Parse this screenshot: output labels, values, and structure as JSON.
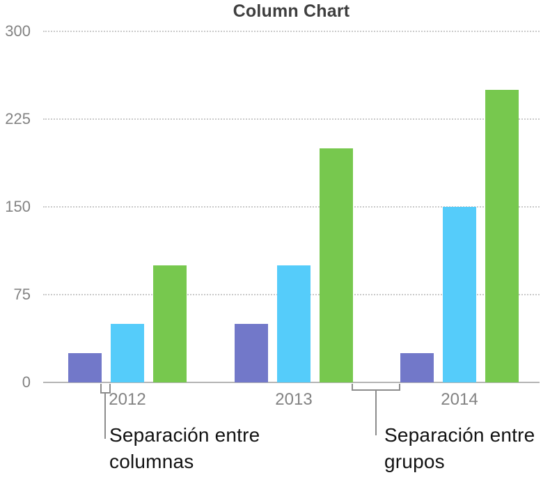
{
  "chart_data": {
    "type": "bar",
    "title": "Column Chart",
    "categories": [
      "2012",
      "2013",
      "2014"
    ],
    "series": [
      {
        "color_name": "purple",
        "color": "#7278C9",
        "values": [
          25,
          50,
          25
        ]
      },
      {
        "color_name": "cyan",
        "color": "#55CCFA",
        "values": [
          50,
          100,
          150
        ]
      },
      {
        "color_name": "green",
        "color": "#77C84E",
        "values": [
          100,
          200,
          250
        ]
      }
    ],
    "yticks": [
      0,
      75,
      150,
      225,
      300
    ],
    "ylim": [
      0,
      300
    ],
    "xlabel": "",
    "ylabel": "",
    "grid": "horizontal-dotted",
    "legend_position": "none"
  },
  "annotations": {
    "column_gap": {
      "line1": "Separación entre",
      "line2": "columnas"
    },
    "group_gap": {
      "line1": "Separación entre",
      "line2": "grupos"
    }
  },
  "colors": {
    "title": "#3e3e3e",
    "tick_label": "#828282",
    "grid": "#c9c9c9",
    "axis": "#b4b4b4",
    "bracket": "#8c8c8c",
    "annotation": "#121212",
    "background": "#ffffff"
  }
}
